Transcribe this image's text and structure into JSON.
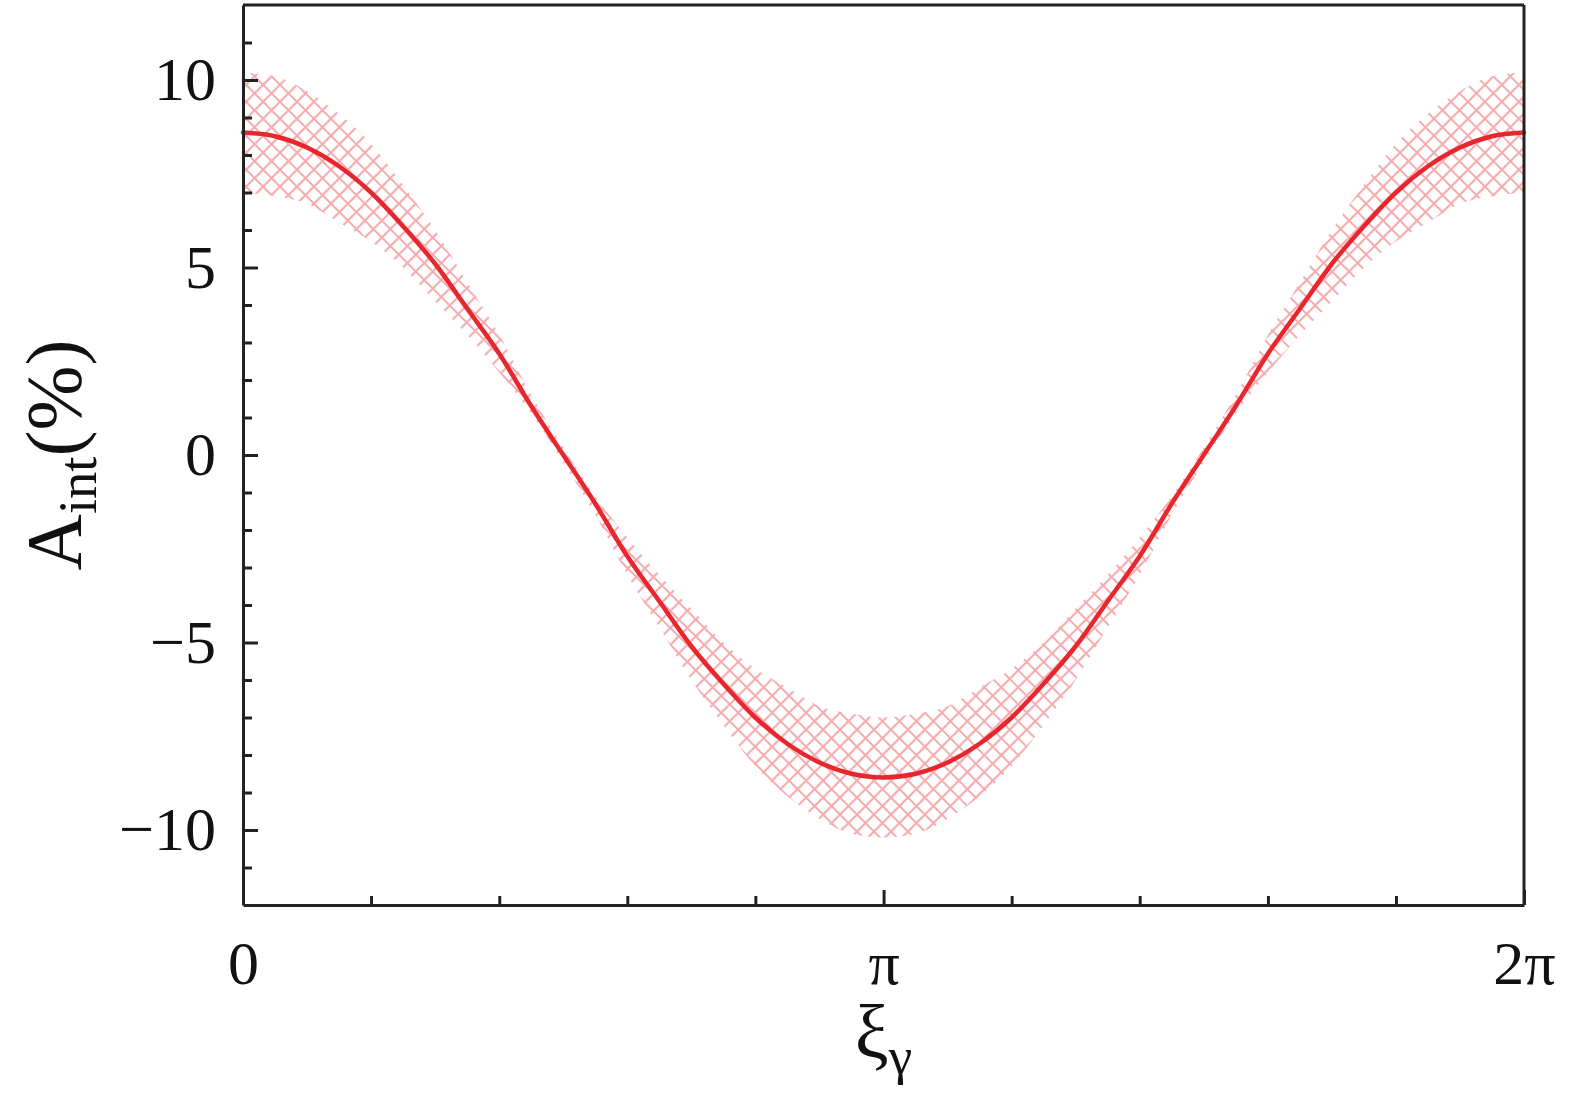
{
  "chart_data": {
    "type": "line",
    "xlabel": "ξ$_{γ}$",
    "ylabel": "A$_{int}$(%)",
    "xlim": [
      0,
      6.283
    ],
    "xticks": [
      {
        "value": 0,
        "label": "0"
      },
      {
        "value": 0.628,
        "label": null
      },
      {
        "value": 1.257,
        "label": null
      },
      {
        "value": 1.885,
        "label": null
      },
      {
        "value": 2.513,
        "label": null
      },
      {
        "value": 3.142,
        "label": "π"
      },
      {
        "value": 3.77,
        "label": null
      },
      {
        "value": 4.398,
        "label": null
      },
      {
        "value": 5.027,
        "label": null
      },
      {
        "value": 5.655,
        "label": null
      },
      {
        "value": 6.283,
        "label": "2π"
      }
    ],
    "ylim": [
      -12,
      12
    ],
    "yticks": [
      {
        "value": -11,
        "label": null
      },
      {
        "value": -10,
        "label": "−10"
      },
      {
        "value": -9,
        "label": null
      },
      {
        "value": -8,
        "label": null
      },
      {
        "value": -7,
        "label": null
      },
      {
        "value": -6,
        "label": null
      },
      {
        "value": -5,
        "label": "−5"
      },
      {
        "value": -4,
        "label": null
      },
      {
        "value": -3,
        "label": null
      },
      {
        "value": -2,
        "label": null
      },
      {
        "value": -1,
        "label": null
      },
      0,
      {
        "value": 1,
        "label": null
      },
      {
        "value": 2,
        "label": null
      },
      {
        "value": 3,
        "label": null
      },
      {
        "value": 4,
        "label": null
      },
      5,
      {
        "value": 6,
        "label": null
      },
      {
        "value": 7,
        "label": null
      },
      {
        "value": 8,
        "label": null
      },
      {
        "value": 9,
        "label": null
      },
      10,
      {
        "value": 11,
        "label": null
      }
    ],
    "x": [
      0,
      0.157,
      0.314,
      0.471,
      0.628,
      0.785,
      0.942,
      1.1,
      1.257,
      1.414,
      1.571,
      1.728,
      1.885,
      2.042,
      2.199,
      2.356,
      2.513,
      2.67,
      2.827,
      2.985,
      3.142,
      3.299,
      3.456,
      3.613,
      3.77,
      3.927,
      4.084,
      4.241,
      4.398,
      4.555,
      4.712,
      4.869,
      5.027,
      5.184,
      5.341,
      5.498,
      5.655,
      5.812,
      5.969,
      6.126,
      6.283
    ],
    "series": [
      {
        "color": "#e8262d",
        "values": [
          8.6,
          8.5,
          8.2,
          7.7,
          7.0,
          6.1,
          5.1,
          3.9,
          2.7,
          1.3,
          0.0,
          -1.3,
          -2.7,
          -3.9,
          -5.1,
          -6.1,
          -7.0,
          -7.7,
          -8.2,
          -8.5,
          -8.6,
          -8.5,
          -8.2,
          -7.7,
          -7.0,
          -6.1,
          -5.1,
          -3.9,
          -2.7,
          -1.3,
          0.0,
          1.3,
          2.7,
          3.9,
          5.1,
          6.1,
          7.0,
          7.7,
          8.2,
          8.5,
          8.6
        ],
        "upper": [
          10.2,
          10.1,
          9.7,
          9.1,
          8.3,
          7.2,
          6.0,
          4.6,
          3.2,
          1.6,
          0.2,
          -1.1,
          -2.2,
          -3.2,
          -4.1,
          -5.0,
          -5.7,
          -6.2,
          -6.7,
          -6.9,
          -7.0,
          -6.9,
          -6.7,
          -6.2,
          -5.7,
          -5.0,
          -4.1,
          -3.2,
          -2.2,
          -1.1,
          0.2,
          1.6,
          3.2,
          4.6,
          6.0,
          7.2,
          8.3,
          9.1,
          9.7,
          10.1,
          10.2
        ],
        "lower": [
          7.0,
          6.9,
          6.7,
          6.2,
          5.7,
          5.0,
          4.1,
          3.2,
          2.2,
          1.1,
          -0.2,
          -1.6,
          -3.2,
          -4.6,
          -6.0,
          -7.2,
          -8.3,
          -9.1,
          -9.7,
          -10.1,
          -10.2,
          -10.1,
          -9.7,
          -9.1,
          -8.3,
          -7.2,
          -6.0,
          -4.6,
          -3.2,
          -1.6,
          -0.2,
          1.1,
          2.2,
          3.2,
          4.1,
          5.0,
          5.7,
          6.2,
          6.7,
          6.9,
          7.0
        ]
      }
    ]
  }
}
